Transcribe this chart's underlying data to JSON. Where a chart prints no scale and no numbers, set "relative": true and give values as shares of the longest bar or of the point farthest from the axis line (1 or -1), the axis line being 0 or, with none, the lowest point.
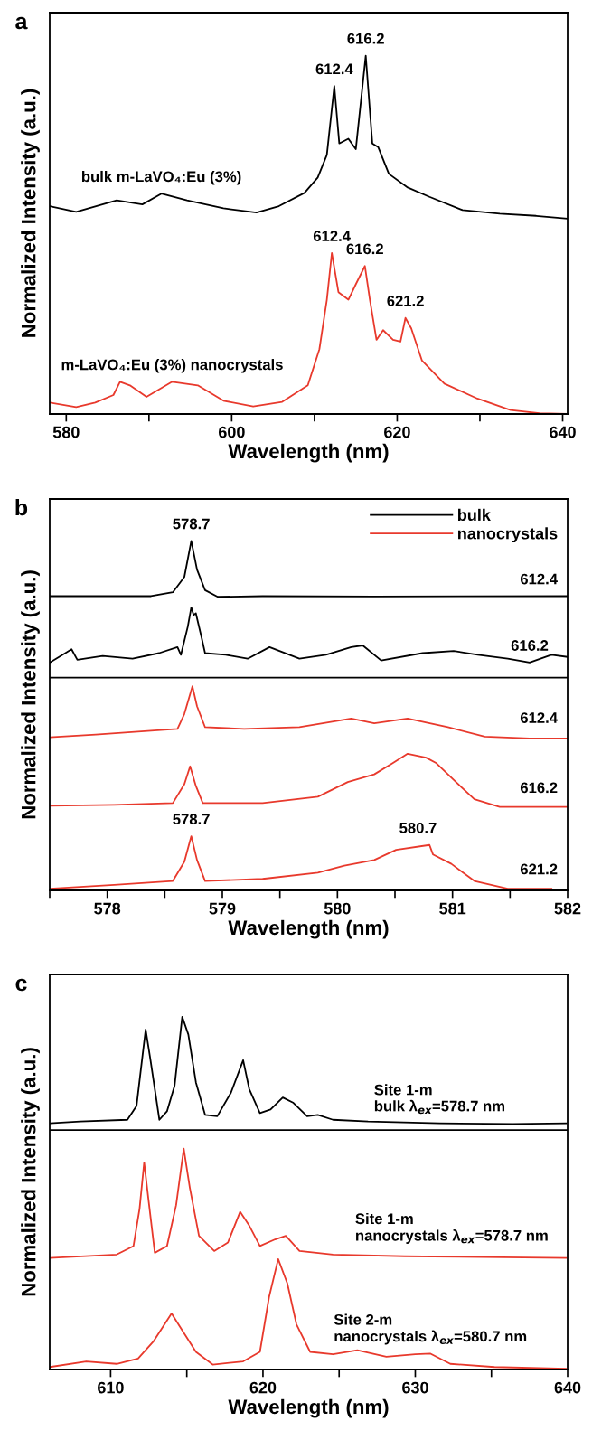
{
  "chart_data": [
    {
      "type": "line",
      "title": "a",
      "xlabel": "Wavelength (nm)",
      "ylabel": "Normalized Intensity (a.u.)",
      "relative": true,
      "legend": false,
      "grid": false,
      "xlim": [
        578,
        640.6
      ],
      "xticks": [
        580,
        {
          "value": 590,
          "label": null
        },
        600,
        {
          "value": 610,
          "label": null
        },
        620,
        {
          "value": 630,
          "label": null
        },
        640
      ],
      "series": [
        {
          "color": "#000000",
          "x": [
            578.0,
            581.2,
            586.1,
            589.2,
            591.5,
            594.6,
            599.0,
            603.0,
            605.7,
            608.8,
            610.4,
            611.5,
            612.4,
            613.0,
            614.1,
            615.0,
            616.2,
            617.0,
            617.7,
            619.0,
            621.2,
            623.9,
            627.9,
            632.4,
            636.8,
            640.6
          ],
          "values": [
            0.58,
            0.564,
            0.596,
            0.585,
            0.615,
            0.596,
            0.574,
            0.562,
            0.58,
            0.617,
            0.66,
            0.723,
            0.915,
            0.755,
            0.768,
            0.739,
            1.0,
            0.755,
            0.745,
            0.67,
            0.633,
            0.606,
            0.569,
            0.559,
            0.553,
            0.545
          ]
        },
        {
          "color": "#e8392c",
          "x": [
            578.0,
            581.2,
            583.5,
            585.7,
            586.5,
            587.7,
            589.7,
            592.8,
            595.9,
            599.0,
            602.6,
            606.1,
            609.2,
            610.6,
            611.5,
            612.1,
            612.9,
            614.1,
            615.0,
            616.1,
            616.7,
            617.5,
            618.3,
            619.5,
            620.4,
            621.0,
            621.7,
            623.0,
            625.7,
            629.7,
            633.7,
            637.2,
            640.6
          ],
          "values": [
            0.032,
            0.019,
            0.032,
            0.053,
            0.09,
            0.08,
            0.048,
            0.09,
            0.08,
            0.037,
            0.021,
            0.034,
            0.08,
            0.181,
            0.319,
            0.449,
            0.34,
            0.319,
            0.362,
            0.413,
            0.319,
            0.207,
            0.234,
            0.207,
            0.202,
            0.268,
            0.239,
            0.149,
            0.085,
            0.043,
            0.011,
            0.002,
            0.0
          ]
        }
      ],
      "annotations": [
        {
          "text": "612.4",
          "x": 612.4,
          "y": 0.915
        },
        {
          "text": "616.2",
          "x": 616.2,
          "y": 1.0
        },
        {
          "text": "612.4",
          "x": 612.1,
          "y": 0.449
        },
        {
          "text": "616.2",
          "x": 616.1,
          "y": 0.413
        },
        {
          "text": "621.2",
          "x": 621.0,
          "y": 0.268
        },
        {
          "text": "bulk m-LaVO₄:Eu (3%)",
          "x": 591.5,
          "y": 0.615
        },
        {
          "text": "m-LaVO₄:Eu (3%) nanocrystals",
          "x": 592.8,
          "y": 0.09
        }
      ]
    },
    {
      "type": "line",
      "title": "b",
      "xlabel": "Wavelength (nm)",
      "ylabel": "Normalized Intensity (a.u.)",
      "relative": true,
      "legend": "top right",
      "grid": false,
      "xlim": [
        577.5,
        582
      ],
      "xticks": [
        {
          "value": 577.5,
          "label": null
        },
        578,
        {
          "value": 578.5,
          "label": null
        },
        579,
        {
          "value": 579.5,
          "label": null
        },
        580,
        {
          "value": 580.5,
          "label": null
        },
        581,
        {
          "value": 581.5,
          "label": null
        },
        582
      ],
      "ref_lines": [
        {
          "axis": "y",
          "value": 0.609,
          "color": "#000000"
        }
      ],
      "series": [
        {
          "name": "bulk",
          "color": "#000000",
          "x": [
            577.5,
            578.38,
            578.57,
            578.67,
            578.73,
            578.78,
            578.85,
            578.96,
            579.35,
            580.32,
            582.0
          ],
          "values": [
            0.842,
            0.842,
            0.853,
            0.897,
            1.0,
            0.918,
            0.859,
            0.84,
            0.842,
            0.841,
            0.842
          ]
        },
        {
          "color": "#000000",
          "x": [
            577.5,
            577.61,
            577.69,
            577.74,
            577.96,
            578.22,
            578.45,
            578.61,
            578.64,
            578.7,
            578.73,
            578.75,
            578.77,
            578.82,
            578.85,
            579.03,
            579.22,
            579.41,
            579.67,
            579.9,
            580.12,
            580.22,
            580.38,
            580.74,
            581.01,
            581.22,
            581.48,
            581.67,
            581.86,
            582.0
          ],
          "values": [
            0.652,
            0.674,
            0.69,
            0.66,
            0.671,
            0.663,
            0.679,
            0.696,
            0.674,
            0.755,
            0.81,
            0.788,
            0.793,
            0.723,
            0.679,
            0.674,
            0.663,
            0.696,
            0.663,
            0.674,
            0.696,
            0.701,
            0.658,
            0.679,
            0.685,
            0.674,
            0.663,
            0.652,
            0.674,
            0.668
          ]
        },
        {
          "name": "nanocrystals",
          "color": "#e8392c",
          "x": [
            577.5,
            577.9,
            578.38,
            578.61,
            578.67,
            578.74,
            578.78,
            578.85,
            579.19,
            579.67,
            580.12,
            580.32,
            580.61,
            580.96,
            581.28,
            581.67,
            582.0
          ],
          "values": [
            0.438,
            0.446,
            0.457,
            0.462,
            0.505,
            0.584,
            0.527,
            0.467,
            0.462,
            0.467,
            0.492,
            0.478,
            0.492,
            0.467,
            0.44,
            0.435,
            0.435
          ]
        },
        {
          "color": "#e8392c",
          "x": [
            577.5,
            578.06,
            578.57,
            578.67,
            578.72,
            578.77,
            578.83,
            579.35,
            579.83,
            580.09,
            580.32,
            580.48,
            580.61,
            580.77,
            580.86,
            581.03,
            581.19,
            581.41,
            582.0
          ],
          "values": [
            0.242,
            0.245,
            0.25,
            0.304,
            0.355,
            0.299,
            0.25,
            0.25,
            0.268,
            0.31,
            0.332,
            0.364,
            0.391,
            0.38,
            0.364,
            0.31,
            0.261,
            0.239,
            0.239
          ]
        },
        {
          "color": "#e8392c",
          "x": [
            577.5,
            578.06,
            578.57,
            578.67,
            578.73,
            578.78,
            578.85,
            579.35,
            579.83,
            580.06,
            580.32,
            580.51,
            580.8,
            580.83,
            580.99,
            581.19,
            581.48,
            581.86
          ],
          "values": [
            0.005,
            0.016,
            0.027,
            0.082,
            0.155,
            0.087,
            0.027,
            0.033,
            0.051,
            0.071,
            0.087,
            0.116,
            0.13,
            0.103,
            0.076,
            0.027,
            0.005,
            0.005
          ]
        }
      ],
      "annotations": [
        {
          "text": "578.7",
          "x": 578.73,
          "y": 1.0
        },
        {
          "text": "578.7",
          "x": 578.73,
          "y": 0.155
        },
        {
          "text": "580.7",
          "x": 580.7,
          "y": 0.13
        },
        {
          "text": "612.4",
          "x": 581.75,
          "y": 0.842
        },
        {
          "text": "616.2",
          "x": 581.67,
          "y": 0.652
        },
        {
          "text": "612.4",
          "x": 581.75,
          "y": 0.445
        },
        {
          "text": "616.2",
          "x": 581.75,
          "y": 0.245
        },
        {
          "text": "621.2",
          "x": 581.75,
          "y": 0.012
        }
      ]
    },
    {
      "type": "line",
      "title": "c",
      "xlabel": "Wavelength (nm)",
      "ylabel": "Normalized Intensity (a.u.)",
      "relative": true,
      "legend": false,
      "grid": false,
      "xlim": [
        606,
        640
      ],
      "xticks": [
        610,
        {
          "value": 615,
          "label": null
        },
        620,
        {
          "value": 625,
          "label": null
        },
        630,
        {
          "value": 635,
          "label": null
        },
        640
      ],
      "ref_lines": [
        {
          "axis": "y",
          "value": 0.679,
          "color": "#000000"
        }
      ],
      "series": [
        {
          "color": "#000000",
          "x": [
            606.0,
            608.0,
            611.1,
            611.7,
            612.1,
            612.3,
            612.6,
            613.2,
            613.7,
            614.2,
            614.7,
            615.1,
            615.6,
            616.2,
            617.0,
            617.9,
            618.7,
            619.1,
            619.8,
            620.5,
            621.3,
            622.0,
            622.9,
            623.6,
            624.6,
            626.9,
            631.6,
            636.4,
            639.9
          ],
          "values": [
            0.698,
            0.703,
            0.708,
            0.747,
            0.892,
            0.964,
            0.882,
            0.708,
            0.732,
            0.805,
            1.0,
            0.95,
            0.814,
            0.722,
            0.718,
            0.785,
            0.877,
            0.795,
            0.727,
            0.737,
            0.771,
            0.756,
            0.718,
            0.722,
            0.708,
            0.703,
            0.698,
            0.696,
            0.698
          ]
        },
        {
          "color": "#e8392c",
          "x": [
            606.0,
            610.4,
            611.5,
            611.9,
            612.2,
            612.5,
            612.9,
            613.7,
            614.3,
            614.8,
            615.2,
            615.8,
            616.8,
            617.7,
            618.5,
            619.1,
            619.8,
            620.8,
            621.5,
            622.4,
            624.6,
            629.3,
            639.9
          ],
          "values": [
            0.316,
            0.326,
            0.35,
            0.456,
            0.587,
            0.476,
            0.331,
            0.35,
            0.466,
            0.626,
            0.515,
            0.379,
            0.336,
            0.36,
            0.447,
            0.408,
            0.35,
            0.369,
            0.379,
            0.336,
            0.326,
            0.321,
            0.316
          ]
        },
        {
          "color": "#e8392c",
          "x": [
            606.0,
            608.4,
            610.4,
            611.8,
            612.8,
            614.0,
            614.6,
            615.6,
            616.7,
            618.7,
            619.8,
            620.4,
            621.0,
            621.6,
            622.2,
            623.1,
            624.6,
            626.2,
            628.1,
            630.0,
            631.0,
            632.3,
            635.2,
            639.9
          ],
          "values": [
            0.007,
            0.023,
            0.016,
            0.031,
            0.079,
            0.159,
            0.118,
            0.05,
            0.014,
            0.023,
            0.05,
            0.205,
            0.313,
            0.244,
            0.128,
            0.05,
            0.043,
            0.055,
            0.036,
            0.043,
            0.045,
            0.016,
            0.007,
            0.002
          ]
        }
      ],
      "annotations": [
        {
          "text": "Site 1-m\nbulk λ$_{ex}$=578.7 nm",
          "x": 631.6,
          "y": 0.698
        },
        {
          "text": "Site 1-m\nnanocrystals λ$_{ex}$=578.7 nm",
          "x": 632.4,
          "y": 0.331
        },
        {
          "text": "Site 2-m\nnanocrystals λ$_{ex}$=580.7 nm",
          "x": 631.0,
          "y": 0.045
        }
      ]
    }
  ]
}
